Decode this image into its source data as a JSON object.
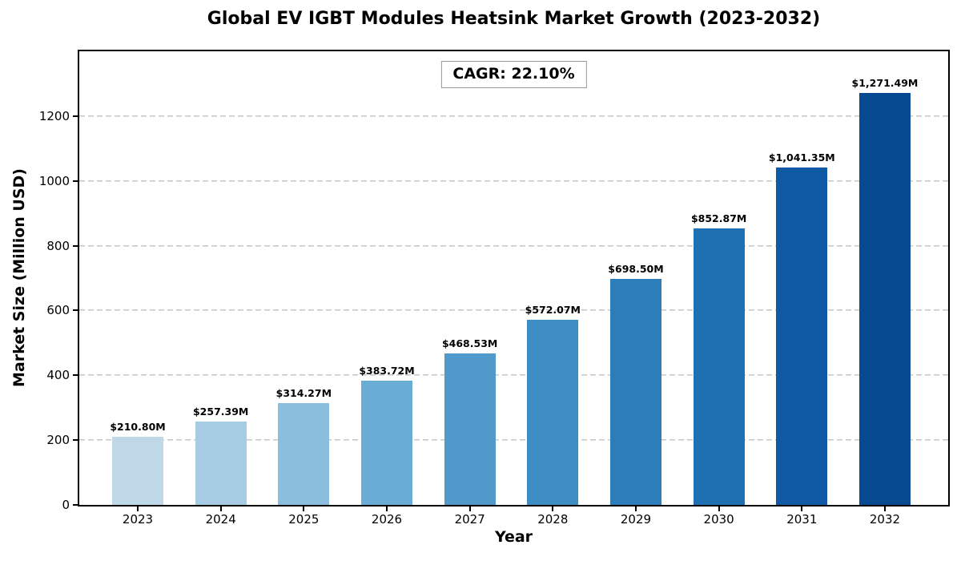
{
  "title": "Global EV IGBT Modules Heatsink Market Growth (2023-2032)",
  "annotation": {
    "cagr_label": "CAGR: 22.10%"
  },
  "axes": {
    "xlabel": "Year",
    "ylabel": "Market Size (Million USD)"
  },
  "chart_data": {
    "type": "bar",
    "title": "Global EV IGBT Modules Heatsink Market Growth (2023-2032)",
    "xlabel": "Year",
    "ylabel": "Market Size (Million USD)",
    "categories": [
      "2023",
      "2024",
      "2025",
      "2026",
      "2027",
      "2028",
      "2029",
      "2030",
      "2031",
      "2032"
    ],
    "values": [
      210.8,
      257.39,
      314.27,
      383.72,
      468.53,
      572.07,
      698.5,
      852.87,
      1041.35,
      1271.49
    ],
    "value_labels": [
      "$210.80M",
      "$257.39M",
      "$314.27M",
      "$383.72M",
      "$468.53M",
      "$572.07M",
      "$698.50M",
      "$852.87M",
      "$1,041.35M",
      "$1,271.49M"
    ],
    "bar_colors": [
      "#bed8e8",
      "#a5cce3",
      "#8abedc",
      "#69acd5",
      "#5099cb",
      "#3d8dc4",
      "#2d7dbb",
      "#1f6fb3",
      "#1059a4",
      "#084a91"
    ],
    "ylim": [
      0,
      1400
    ],
    "yticks": [
      0,
      200,
      400,
      600,
      800,
      1000,
      1200
    ],
    "grid": "horizontal dashed gridlines at y major ticks",
    "legend": "none",
    "annotation": "CAGR: 22.10%",
    "colors": {
      "grid": "#c9c9c9",
      "spine": "#000000",
      "annotation_border": "#999999",
      "annotation_background": "#ffffff",
      "text": "#000000",
      "background": "#ffffff"
    }
  }
}
